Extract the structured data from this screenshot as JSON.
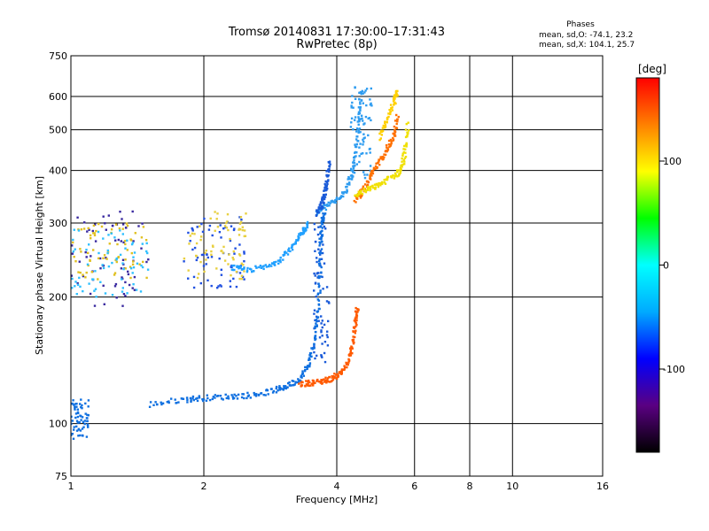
{
  "chart_data": {
    "type": "scatter",
    "title": "Tromsø 20140831 17:30:00–17:31:43",
    "subtitle": "RwPretec (8p)",
    "xlabel": "Frequency [MHz]",
    "ylabel": "Stationary phase Virtual Height [km]",
    "x_scale": "log",
    "y_scale": "log",
    "xlim": [
      1,
      16
    ],
    "ylim": [
      75,
      750
    ],
    "x_ticks": [
      1,
      2,
      4,
      6,
      8,
      10,
      16
    ],
    "x_tick_labels": [
      "1",
      "2",
      "4",
      "6",
      "8",
      "10",
      "16"
    ],
    "y_ticks": [
      75,
      100,
      200,
      300,
      400,
      500,
      600,
      750
    ],
    "y_tick_labels": [
      "75",
      "100",
      "200",
      "300",
      "400",
      "500",
      "600",
      "750"
    ],
    "grid": true,
    "phase_stats": {
      "title": "Phases",
      "o_line": "mean, sd,O: -74.1, 23.2",
      "x_line": "mean, sd,X: 104.1, 25.7"
    },
    "colorbar": {
      "label": "[deg]",
      "range": [
        -180,
        180
      ],
      "ticks": [
        100,
        0,
        -100
      ],
      "tick_labels": [
        "100",
        "0",
        "-100"
      ],
      "colors": [
        "#000000",
        "#5a0082",
        "#0000ff",
        "#00aaff",
        "#00ffff",
        "#00ff00",
        "#ffff00",
        "#ff8000",
        "#ff0000"
      ]
    },
    "series": [
      {
        "color": "#1070e0",
        "trace": [
          [
            1.5,
            111
          ],
          [
            1.8,
            114
          ],
          [
            2.0,
            115
          ],
          [
            2.3,
            116
          ],
          [
            2.6,
            117
          ],
          [
            2.9,
            120
          ],
          [
            3.1,
            123
          ],
          [
            3.3,
            128
          ],
          [
            3.45,
            138
          ],
          [
            3.55,
            155
          ],
          [
            3.62,
            180
          ],
          [
            3.66,
            220
          ],
          [
            3.68,
            270
          ],
          [
            3.7,
            300
          ],
          [
            3.75,
            315
          ]
        ]
      },
      {
        "color": "#ff5a00",
        "trace": [
          [
            3.3,
            124
          ],
          [
            3.5,
            125
          ],
          [
            3.7,
            126
          ],
          [
            3.9,
            128
          ],
          [
            4.1,
            132
          ],
          [
            4.25,
            140
          ],
          [
            4.35,
            155
          ],
          [
            4.42,
            175
          ],
          [
            4.45,
            190
          ]
        ]
      },
      {
        "color": "#2e9cf0",
        "trace": [
          [
            3.6,
            315
          ],
          [
            3.8,
            330
          ],
          [
            4.0,
            340
          ],
          [
            4.2,
            360
          ],
          [
            4.35,
            400
          ],
          [
            4.45,
            460
          ],
          [
            4.5,
            540
          ],
          [
            4.55,
            630
          ]
        ]
      },
      {
        "color": "#1a5ad8",
        "trace": [
          [
            3.6,
            315
          ],
          [
            3.7,
            330
          ],
          [
            3.75,
            350
          ],
          [
            3.8,
            380
          ],
          [
            3.85,
            420
          ]
        ]
      },
      {
        "color": "#ff7000",
        "trace": [
          [
            4.4,
            340
          ],
          [
            4.6,
            360
          ],
          [
            4.8,
            390
          ],
          [
            5.0,
            420
          ],
          [
            5.2,
            450
          ],
          [
            5.4,
            490
          ],
          [
            5.5,
            540
          ]
        ]
      },
      {
        "color": "#f0e000",
        "trace": [
          [
            4.4,
            350
          ],
          [
            4.7,
            360
          ],
          [
            5.0,
            370
          ],
          [
            5.3,
            385
          ],
          [
            5.6,
            400
          ],
          [
            5.7,
            440
          ],
          [
            5.8,
            520
          ]
        ]
      },
      {
        "color": "#20a0ff",
        "trace": [
          [
            2.3,
            235
          ],
          [
            2.5,
            232
          ],
          [
            2.8,
            236
          ],
          [
            3.0,
            248
          ],
          [
            3.2,
            265
          ],
          [
            3.35,
            285
          ],
          [
            3.45,
            300
          ]
        ]
      },
      {
        "color": "#ffd000",
        "trace": [
          [
            5.0,
            480
          ],
          [
            5.2,
            530
          ],
          [
            5.4,
            580
          ],
          [
            5.5,
            620
          ]
        ]
      }
    ],
    "clusters": [
      {
        "color": "#3a2aa0",
        "x": [
          1.0,
          1.5
        ],
        "y": [
          190,
          320
        ]
      },
      {
        "color": "#e0c020",
        "x": [
          1.0,
          1.5
        ],
        "y": [
          220,
          300
        ]
      },
      {
        "color": "#30c0ff",
        "x": [
          1.0,
          1.5
        ],
        "y": [
          200,
          290
        ]
      },
      {
        "color": "#2050e0",
        "x": [
          1.8,
          2.5
        ],
        "y": [
          210,
          310
        ]
      },
      {
        "color": "#e8d040",
        "x": [
          1.8,
          2.5
        ],
        "y": [
          220,
          320
        ]
      },
      {
        "color": "#1a5ad8",
        "x": [
          3.55,
          3.85
        ],
        "y": [
          140,
          320
        ]
      },
      {
        "color": "#2e9cf0",
        "x": [
          4.3,
          4.8
        ],
        "y": [
          380,
          640
        ]
      },
      {
        "color": "#1070e0",
        "x": [
          0.99,
          1.1
        ],
        "y": [
          92,
          115
        ]
      }
    ]
  }
}
